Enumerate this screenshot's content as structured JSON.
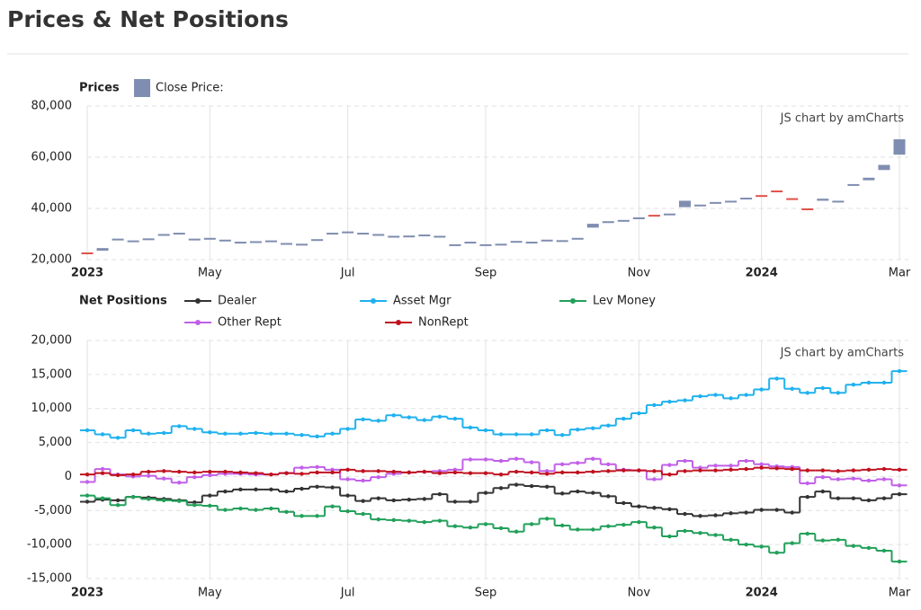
{
  "title": "Prices & Net Positions",
  "chart_data": [
    {
      "type": "candlestick",
      "title": "Prices",
      "watermark": "JS chart by amCharts",
      "categories": [
        "2023",
        null,
        null,
        null,
        null,
        null,
        null,
        null,
        "May",
        null,
        null,
        null,
        null,
        null,
        null,
        null,
        null,
        "Jul",
        null,
        null,
        null,
        null,
        null,
        null,
        null,
        null,
        "Sep",
        null,
        null,
        null,
        null,
        null,
        null,
        null,
        null,
        null,
        "Nov",
        null,
        null,
        null,
        null,
        null,
        null,
        null,
        "2024",
        null,
        null,
        null,
        null,
        null,
        null,
        null,
        null,
        "Mar"
      ],
      "series": [
        {
          "name": "Close Price:",
          "color": "#7f8db0",
          "down_color": "#e0524a",
          "open": [
            22800,
            23500,
            27800,
            27200,
            27800,
            29500,
            30000,
            27800,
            28000,
            27400,
            26700,
            26900,
            27100,
            26100,
            25900,
            27500,
            30000,
            30500,
            30200,
            29700,
            29000,
            29100,
            29500,
            29000,
            25700,
            26400,
            25600,
            25800,
            26900,
            26600,
            27400,
            27200,
            28000,
            32500,
            34500,
            35000,
            36000,
            37500,
            37600,
            40500,
            41000,
            42000,
            42600,
            43500,
            45200,
            47000,
            44000,
            40000,
            43000,
            42600,
            49000,
            51000,
            55000,
            61000
          ],
          "close": [
            22300,
            24500,
            28200,
            27500,
            28300,
            30000,
            30500,
            28200,
            28500,
            27800,
            27000,
            27200,
            27500,
            26500,
            26200,
            28000,
            30500,
            31000,
            30500,
            30000,
            29300,
            29400,
            29800,
            29300,
            26000,
            27000,
            26000,
            26200,
            27300,
            27000,
            27800,
            27600,
            28500,
            34000,
            35000,
            35500,
            36500,
            37200,
            38000,
            43000,
            41500,
            42500,
            43000,
            44200,
            45000,
            46500,
            43500,
            39500,
            43800,
            43000,
            49500,
            52000,
            57000,
            67000
          ]
        }
      ],
      "ylim": [
        20000,
        80000
      ],
      "yticks": [
        {
          "value": 20000,
          "label": "20,000"
        },
        {
          "value": 40000,
          "label": "40,000"
        },
        {
          "value": 60000,
          "label": "60,000"
        },
        {
          "value": 80000,
          "label": "80,000"
        }
      ],
      "grid": true
    },
    {
      "type": "step",
      "title": "Net Positions",
      "watermark": "JS chart by amCharts",
      "categories": [
        "2023",
        null,
        null,
        null,
        null,
        null,
        null,
        null,
        "May",
        null,
        null,
        null,
        null,
        null,
        null,
        null,
        null,
        "Jul",
        null,
        null,
        null,
        null,
        null,
        null,
        null,
        null,
        "Sep",
        null,
        null,
        null,
        null,
        null,
        null,
        null,
        null,
        null,
        "Nov",
        null,
        null,
        null,
        null,
        null,
        null,
        null,
        "2024",
        null,
        null,
        null,
        null,
        null,
        null,
        null,
        null,
        "Mar"
      ],
      "series": [
        {
          "name": "Dealer",
          "color": "#333333",
          "values": [
            -3700,
            -3400,
            -3500,
            -3000,
            -3100,
            -3300,
            -3500,
            -3800,
            -2800,
            -2200,
            -1900,
            -1900,
            -1900,
            -2200,
            -1800,
            -1500,
            -1600,
            -2800,
            -3600,
            -3200,
            -3500,
            -3400,
            -3300,
            -2600,
            -3700,
            -3700,
            -2400,
            -1700,
            -1200,
            -1400,
            -1500,
            -2500,
            -2200,
            -2400,
            -2900,
            -3900,
            -4400,
            -4600,
            -4800,
            -5500,
            -5800,
            -5700,
            -5400,
            -5300,
            -4900,
            -4900,
            -5300,
            -3000,
            -2200,
            -3200,
            -3200,
            -3500,
            -3200,
            -2600
          ]
        },
        {
          "name": "Asset Mgr",
          "color": "#1fb1ee",
          "values": [
            6800,
            6200,
            5700,
            6800,
            6300,
            6400,
            7400,
            7000,
            6500,
            6300,
            6300,
            6400,
            6300,
            6300,
            6100,
            5900,
            6300,
            7000,
            8400,
            8200,
            9000,
            8700,
            8300,
            8800,
            8500,
            7200,
            6800,
            6200,
            6200,
            6200,
            6800,
            6100,
            6900,
            7100,
            7500,
            8500,
            9300,
            10500,
            11000,
            11200,
            11800,
            12000,
            11500,
            12000,
            12800,
            14400,
            12900,
            12300,
            13000,
            12300,
            13500,
            13800,
            13800,
            15500
          ]
        },
        {
          "name": "Lev Money",
          "color": "#22a05a",
          "values": [
            -2800,
            -3200,
            -4200,
            -3000,
            -3300,
            -3500,
            -3600,
            -4200,
            -4300,
            -4900,
            -4700,
            -4900,
            -4700,
            -5200,
            -5800,
            -5800,
            -4400,
            -5100,
            -5500,
            -6300,
            -6400,
            -6500,
            -6700,
            -6500,
            -7300,
            -7500,
            -7000,
            -7600,
            -8100,
            -7000,
            -6200,
            -7200,
            -7800,
            -7800,
            -7300,
            -7100,
            -6700,
            -7500,
            -8800,
            -8000,
            -8300,
            -8600,
            -9300,
            -10000,
            -10300,
            -11200,
            -9800,
            -8400,
            -9400,
            -9300,
            -10200,
            -10500,
            -10900,
            -12500
          ]
        },
        {
          "name": "Other Rept",
          "color": "#c160e8",
          "values": [
            -800,
            1100,
            300,
            0,
            100,
            -300,
            -900,
            -100,
            200,
            400,
            400,
            300,
            300,
            500,
            1300,
            1400,
            1000,
            -400,
            -600,
            -100,
            400,
            600,
            700,
            800,
            1000,
            2500,
            2500,
            2300,
            2600,
            2100,
            800,
            1800,
            2000,
            2600,
            1800,
            1000,
            900,
            -400,
            1700,
            2300,
            1300,
            1600,
            1600,
            2300,
            1800,
            1500,
            1400,
            -1000,
            -100,
            -400,
            -300,
            -600,
            -400,
            -1300
          ]
        },
        {
          "name": "NonRept",
          "color": "#c0111f",
          "values": [
            300,
            500,
            200,
            300,
            700,
            800,
            700,
            600,
            700,
            700,
            600,
            500,
            300,
            500,
            400,
            600,
            600,
            1000,
            800,
            800,
            700,
            600,
            700,
            500,
            600,
            500,
            500,
            300,
            700,
            600,
            400,
            600,
            600,
            700,
            800,
            900,
            900,
            800,
            300,
            800,
            900,
            900,
            1000,
            1100,
            1300,
            1200,
            1100,
            900,
            900,
            800,
            900,
            1000,
            1100,
            1000
          ]
        }
      ],
      "ylim": [
        -15000,
        20000
      ],
      "yticks": [
        {
          "value": -15000,
          "label": "-15,000"
        },
        {
          "value": -10000,
          "label": "-10,000"
        },
        {
          "value": -5000,
          "label": "-5,000"
        },
        0,
        {
          "value": 5000,
          "label": "5,000"
        },
        {
          "value": 10000,
          "label": "10,000"
        },
        {
          "value": 15000,
          "label": "15,000"
        },
        {
          "value": 20000,
          "label": "20,000"
        }
      ],
      "grid": true
    }
  ]
}
